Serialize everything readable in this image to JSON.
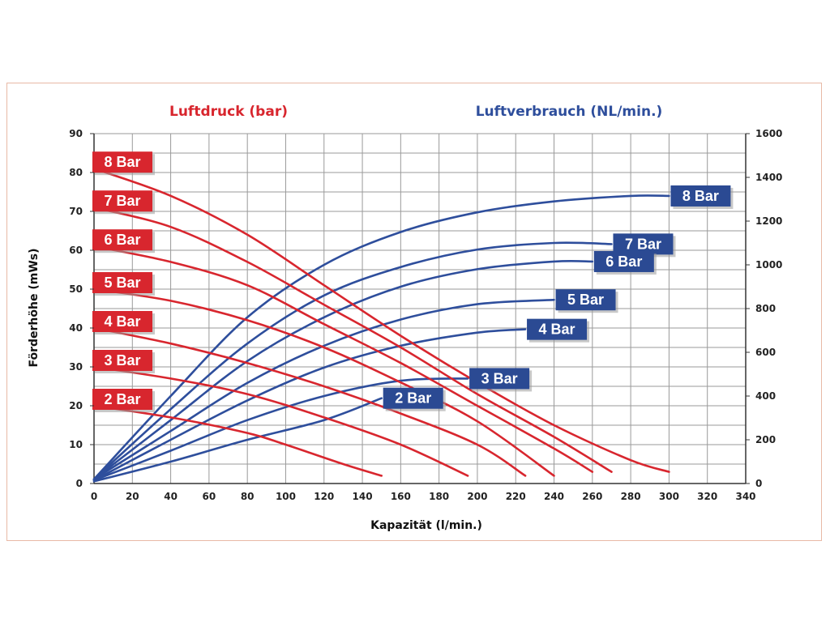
{
  "chart_data": {
    "type": "line",
    "title_left": "Luftdruck (bar)",
    "title_right": "Luftverbrauch (NL/min.)",
    "xlabel": "Kapazität (l/min.)",
    "ylabel_left": "Förderhöhe (mWs)",
    "xlim": [
      0,
      340
    ],
    "ylim_left": [
      0,
      90
    ],
    "ylim_right": [
      0,
      1600
    ],
    "x_ticks": [
      "0",
      "20",
      "40",
      "60",
      "80",
      "100",
      "120",
      "140",
      "160",
      "180",
      "200",
      "220",
      "240",
      "260",
      "280",
      "300",
      "320",
      "340"
    ],
    "y_left_ticks": [
      "0",
      "10",
      "20",
      "30",
      "40",
      "50",
      "60",
      "70",
      "80",
      "90"
    ],
    "y_right_ticks": [
      "0",
      "200",
      "400",
      "600",
      "800",
      "1000",
      "1200",
      "1400",
      "1600"
    ],
    "grid": true,
    "colors": {
      "pressure": "#d8262e",
      "consumption": "#2e4e9c",
      "label_red": "#d8262e",
      "label_blue": "#2b4a93"
    },
    "pressure_series": [
      {
        "name": "8 Bar",
        "x": [
          0,
          40,
          80,
          120,
          160,
          200,
          240,
          280,
          300
        ],
        "y": [
          81,
          74,
          64,
          51,
          38,
          26,
          15,
          6,
          3
        ]
      },
      {
        "name": "7 Bar",
        "x": [
          0,
          40,
          80,
          120,
          160,
          200,
          240,
          270
        ],
        "y": [
          71,
          66,
          57,
          46,
          35,
          23,
          12,
          3
        ]
      },
      {
        "name": "6 Bar",
        "x": [
          0,
          40,
          80,
          120,
          160,
          200,
          240,
          260
        ],
        "y": [
          61,
          57,
          51,
          41,
          31,
          20,
          9,
          3
        ]
      },
      {
        "name": "5 Bar",
        "x": [
          0,
          40,
          80,
          120,
          160,
          200,
          240
        ],
        "y": [
          50,
          47,
          42,
          35,
          26,
          16,
          2
        ]
      },
      {
        "name": "4 Bar",
        "x": [
          0,
          40,
          80,
          120,
          160,
          200,
          225
        ],
        "y": [
          40,
          36,
          31,
          25,
          18,
          10,
          2
        ]
      },
      {
        "name": "3 Bar",
        "x": [
          0,
          40,
          80,
          120,
          160,
          195
        ],
        "y": [
          30,
          27,
          23,
          17,
          10,
          2
        ]
      },
      {
        "name": "2 Bar",
        "x": [
          0,
          40,
          80,
          100,
          130,
          150
        ],
        "y": [
          20,
          17,
          13,
          10,
          5,
          2
        ]
      }
    ],
    "consumption_series": [
      {
        "name": "8 Bar",
        "x": [
          0,
          40,
          80,
          120,
          160,
          200,
          240,
          280,
          300
        ],
        "y": [
          20,
          400,
          760,
          1000,
          1150,
          1240,
          1290,
          1315,
          1315
        ]
      },
      {
        "name": "7 Bar",
        "x": [
          0,
          40,
          80,
          120,
          160,
          200,
          240,
          270
        ],
        "y": [
          20,
          340,
          640,
          860,
          990,
          1070,
          1100,
          1095
        ]
      },
      {
        "name": "6 Bar",
        "x": [
          0,
          40,
          80,
          120,
          160,
          200,
          240,
          260
        ],
        "y": [
          20,
          290,
          560,
          760,
          900,
          980,
          1015,
          1015
        ]
      },
      {
        "name": "5 Bar",
        "x": [
          0,
          40,
          80,
          120,
          160,
          200,
          240
        ],
        "y": [
          20,
          240,
          460,
          630,
          750,
          820,
          840
        ]
      },
      {
        "name": "4 Bar",
        "x": [
          0,
          40,
          80,
          120,
          160,
          200,
          225
        ],
        "y": [
          15,
          200,
          380,
          530,
          630,
          690,
          705
        ]
      },
      {
        "name": "3 Bar",
        "x": [
          0,
          40,
          80,
          120,
          160,
          195
        ],
        "y": [
          15,
          150,
          290,
          400,
          470,
          480
        ]
      },
      {
        "name": "2 Bar",
        "x": [
          0,
          40,
          80,
          120,
          150
        ],
        "y": [
          10,
          100,
          200,
          290,
          390
        ]
      }
    ]
  }
}
